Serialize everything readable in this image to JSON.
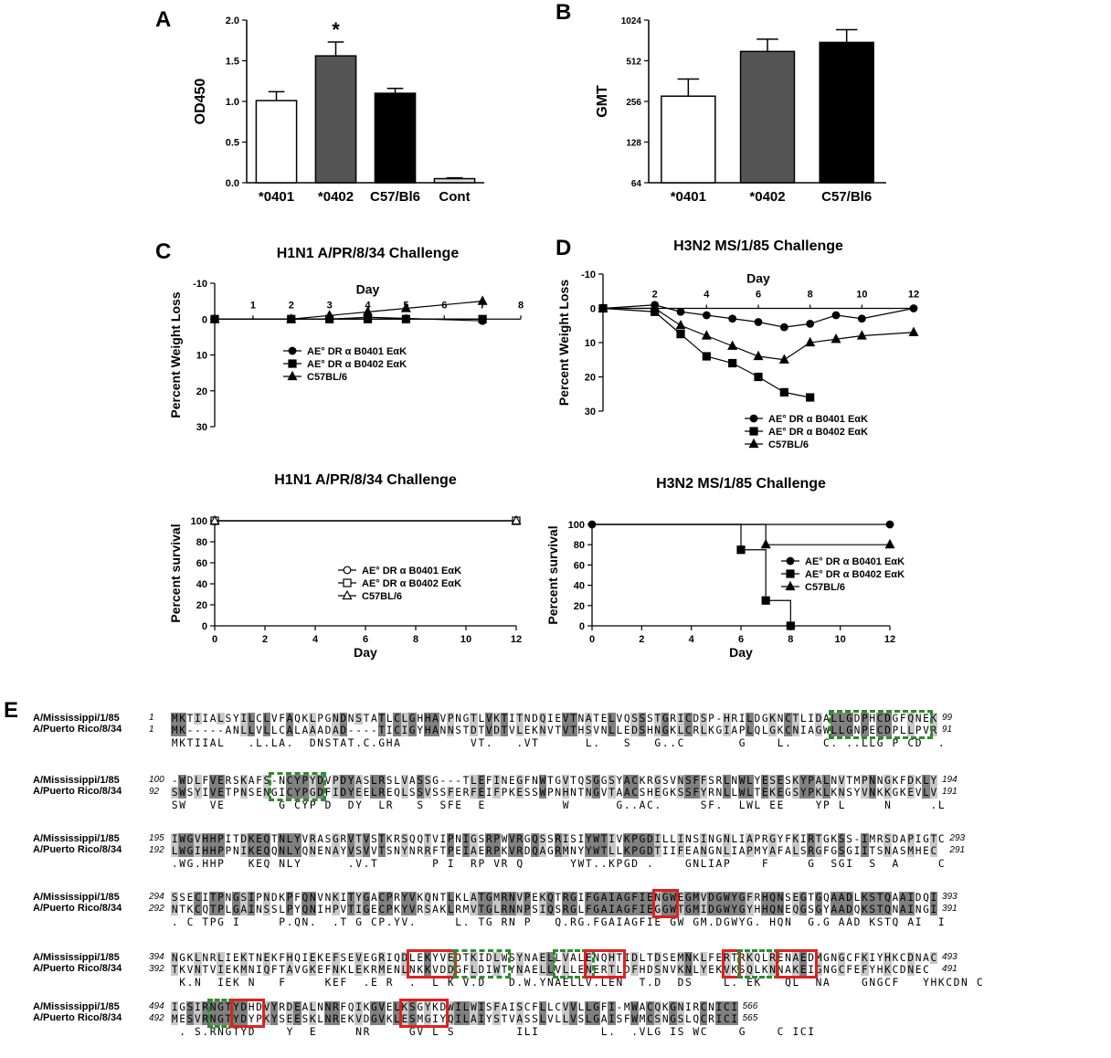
{
  "panel_labels": {
    "a": "A",
    "b": "B",
    "c": "C",
    "d": "D",
    "e": "E"
  },
  "chart_data": [
    {
      "id": "A",
      "type": "bar",
      "title": "",
      "ylabel": "OD450",
      "xlabel": "",
      "categories": [
        "*0401",
        "*0402",
        "C57/Bl6",
        "Cont"
      ],
      "values": [
        1.01,
        1.56,
        1.1,
        0.05
      ],
      "errors": [
        0.11,
        0.17,
        0.06,
        0.01
      ],
      "fills": [
        "#ffffff",
        "#555555",
        "#000000",
        "#dddddd"
      ],
      "ylim": [
        0,
        2.0
      ],
      "yticks": [
        "0.0",
        "0.5",
        "1.0",
        "1.5",
        "2.0"
      ],
      "annotation": "*"
    },
    {
      "id": "B",
      "type": "bar",
      "title": "",
      "ylabel": "GMT",
      "xlabel": "",
      "categories": [
        "*0401",
        "*0402",
        "C57/Bl6"
      ],
      "values": [
        280,
        600,
        700
      ],
      "errors": [
        95,
        140,
        170
      ],
      "fills": [
        "#ffffff",
        "#555555",
        "#000000"
      ],
      "yscale": "log2",
      "ylim": [
        64,
        1024
      ],
      "yticks": [
        "64",
        "128",
        "256",
        "512",
        "1024"
      ]
    },
    {
      "id": "C-top",
      "type": "line",
      "title": "H1N1 A/PR/8/34 Challenge",
      "ylabel": "Percent Weight Loss",
      "xlabel": "Day",
      "x": [
        0,
        2,
        3,
        4,
        5,
        7
      ],
      "xticks": [
        "1",
        "2",
        "3",
        "4",
        "5",
        "6",
        "7",
        "8"
      ],
      "yticks": [
        "-10",
        "0",
        "10",
        "20",
        "30"
      ],
      "ylim": [
        -10,
        30
      ],
      "xlim": [
        0,
        8
      ],
      "series": [
        {
          "name": "AE° DR α B0401 EαK",
          "marker": "circle",
          "values": [
            0,
            0,
            0,
            -0.5,
            -0.2,
            0.5
          ]
        },
        {
          "name": "AE° DR α B0402 EαK",
          "marker": "square",
          "values": [
            0,
            0,
            0,
            0,
            0,
            0
          ]
        },
        {
          "name": "C57BL/6",
          "marker": "triangle",
          "values": [
            0,
            0,
            -1,
            -2,
            -3,
            -5
          ]
        }
      ]
    },
    {
      "id": "C-bottom",
      "type": "line",
      "title": "H1N1 A/PR/8/34 Challenge",
      "ylabel": "Percent survival",
      "xlabel": "Day",
      "xticks": [
        "0",
        "2",
        "4",
        "6",
        "8",
        "10",
        "12"
      ],
      "yticks": [
        "0",
        "20",
        "40",
        "60",
        "80",
        "100"
      ],
      "ylim": [
        0,
        100
      ],
      "xlim": [
        0,
        12
      ],
      "series": [
        {
          "name": "AE° DR α B0401 EαK",
          "marker": "circle-open",
          "x": [
            0,
            12
          ],
          "values": [
            100,
            100
          ]
        },
        {
          "name": "AE° DR α B0402 EαK",
          "marker": "square-open",
          "x": [
            0,
            12
          ],
          "values": [
            100,
            100
          ]
        },
        {
          "name": "C57BL/6",
          "marker": "triangle-open",
          "x": [
            0,
            12
          ],
          "values": [
            100,
            100
          ]
        }
      ]
    },
    {
      "id": "D-top",
      "type": "line",
      "title": "H3N2 MS/1/85 Challenge",
      "ylabel": "Percent Weight Loss",
      "xlabel": "Day",
      "xticks": [
        "2",
        "4",
        "6",
        "8",
        "10",
        "12"
      ],
      "yticks": [
        "-10",
        "0",
        "10",
        "20",
        "30"
      ],
      "ylim": [
        -10,
        30
      ],
      "xlim": [
        0,
        12
      ],
      "series": [
        {
          "name": "AE° DR α B0401 EαK",
          "marker": "circle",
          "x": [
            0,
            2,
            3,
            4,
            5,
            6,
            7,
            8,
            9,
            10,
            12
          ],
          "values": [
            0,
            -1,
            1,
            2,
            3,
            4,
            5.5,
            4.5,
            2,
            3,
            0
          ]
        },
        {
          "name": "AE° DR α B0402 EαK",
          "marker": "square",
          "x": [
            0,
            2,
            3,
            4,
            5,
            6,
            7,
            8
          ],
          "values": [
            0,
            1,
            7.5,
            14,
            16,
            20,
            24.5,
            26
          ]
        },
        {
          "name": "C57BL/6",
          "marker": "triangle",
          "x": [
            0,
            2,
            3,
            4,
            5,
            6,
            7,
            8,
            9,
            10,
            12
          ],
          "values": [
            0,
            0,
            5,
            8,
            11,
            14,
            15,
            10,
            9,
            8,
            7
          ]
        }
      ]
    },
    {
      "id": "D-bottom",
      "type": "line",
      "title": "H3N2 MS/1/85 Challenge",
      "ylabel": "Percent survival",
      "xlabel": "Day",
      "xticks": [
        "0",
        "2",
        "4",
        "6",
        "8",
        "10",
        "12"
      ],
      "yticks": [
        "0",
        "20",
        "40",
        "60",
        "80",
        "100"
      ],
      "ylim": [
        0,
        100
      ],
      "xlim": [
        0,
        12
      ],
      "series": [
        {
          "name": "AE° DR α B0401 EαK",
          "marker": "circle",
          "step": true,
          "x": [
            0,
            12
          ],
          "values": [
            100,
            100
          ]
        },
        {
          "name": "AE° DR α B0402 EαK",
          "marker": "square",
          "step": true,
          "x": [
            0,
            6,
            7,
            8
          ],
          "values": [
            100,
            75,
            25,
            0
          ]
        },
        {
          "name": "C57BL/6",
          "marker": "triangle",
          "step": true,
          "x": [
            0,
            7,
            12
          ],
          "values": [
            100,
            80,
            80
          ]
        }
      ]
    }
  ],
  "alignment": {
    "names": [
      "A/Mississippi/1/85",
      "A/Puerto Rico/8/34"
    ],
    "blocks": [
      {
        "s1": "1",
        "s2": "1",
        "e1": "99",
        "e2": "91",
        "q1": "MKTIIALSYILCLVFAQKLPGNDNSTATLCLGHHAVPNGTLVKTITNDQIEVTNATELVQSSSTGRICDSP-HRILDGKNCTLIDALLGDPHCDGFQNEK",
        "q2": "MK-----ANLLVLLCALAAADAD----TICIGYHANNSTDTVDTVLEKNVTVTHSVNLLEDSHNGKLCRLKGIAPLQLGKCNIAGWLLGNPECDPLLPVR",
        "c": "MKTIIAL   .L.LA.  DNSTAT.C.GHA         VT.   .VT      L.   S   G..C       G    L.    C. ..LLG P CD  .  "
      },
      {
        "s1": "100",
        "s2": "92",
        "e1": "194",
        "e2": "191",
        "q1": "-WDLFVERSKAFS-NCYPYDVPDYASLRSLVASSG---TLEFINEGFNWTGVTQSGGSYACKRGSVNSFFSRLNWLYESESKYPALNVTMPNNGKFDKLY",
        "q2": "SWSYIVETPNSENGICYPGDFIDYEELREQLSSVSSFERFEIFPKESSWPNHNTNGVTAACSHEGKSSFYRNLLWLTEKEGSYPKLKNSYVNKKGKEVLV",
        "c": "SW   VE       G CYP D  DY  LR   S  SFE  E          W      G..AC.     SF.  LWL EE    YP L     N     .L "
      },
      {
        "s1": "195",
        "s2": "192",
        "e1": "293",
        "e2": "291",
        "q1": "IWGVHHPITDKEQTNLYVRASGRVTVSTKRSQQTVIPNIGSRPWVRGQSSRISIYWTIVKPGDILLINSINGNLIAPRGYFKIRTGKSS-IMRSDAPIGTC",
        "q2": "LWGIHHPPNIKEQQNLYQNENAYVSVVTSNYNRRFTPEIAERPKVRDQAGRMNYYWTLLKPGDTIIFEANGNLIAPMYAFALSRGFGSGIITSNASMHEC",
        "c": ".WG.HHP   KEQ NLY      .V.T       P I  RP VR Q      YWT..KPGD .    GNLIAP    F     G  SGI  S  A     C"
      },
      {
        "s1": "294",
        "s2": "292",
        "e1": "393",
        "e2": "391",
        "q1": "SSECITPNGSIPNDKPFQNVNKITYGACPRYVKQNTLKLATGMRNVPEKQTRGIFGAIAGFIENGWEGMVDGWYGFRHQNSEGTGQAADLKSTQAAIDQI",
        "q2": "NTKCQTPLGAINSSLPYQNIHPVTIGECPKYVRSAKLRMVTGLRNNPSIQSRGLFGAIAGFIEGGWTGMIDGWYGYHHQNEQGSGYAADQKSTQNAINGI",
        "c": ". C TPG I     P.QN.  .T G CP.YV.     L. TG RN P   Q.RG.FGAIAGFIE GW GM.DGWYG. HQN  G.G AAD KSTQ AI  I"
      },
      {
        "s1": "394",
        "s2": "392",
        "e1": "493",
        "e2": "491",
        "q1": "NGKLNRLIEKTNEKFHQIEKEFSEVEGRIQDLEKYVEDTKIDLWSYNAELLVALENQHTIDLTDSEMNKLFERTRKQLRENAEDMGNGCFKIYHKCDNAC",
        "q2": "TKVNTVIEKMNIQFTAVGKEFNKLEKRMENLNKKVDDGFLDIWTYNAELLVLLENERTLDFHDSNVKNLYEKVKSQLKNNAKEIGNGCFEFYHKCDNEC",
        "c": " K.N  IEK N   F     KEF  .E R  .  L K V.D   D.W.YNAELLV.LEN  T.D  DS    L. EK   QL  NA    GNGCF   YHKCDN C"
      },
      {
        "s1": "494",
        "s2": "492",
        "e1": "566",
        "e2": "565",
        "q1": "IGSIRNGTYDHDVYRDEALNNRFQIKGVELKSGYKDWILWISFAISCFLLCVVLLGFI-MWACQKGNIRCNICI",
        "q2": "MESVRNGTYDYPKYSEESKLNREKVDGVKLESMGIYQILAIYSTVASSLVLLVSLGAISFWMCSNGSLQCRICI",
        "c": " . S.RNGTYD    Y  E     NR     GV L S        ILI        L.  .VLG IS WC    G    C ICI"
      }
    ]
  }
}
